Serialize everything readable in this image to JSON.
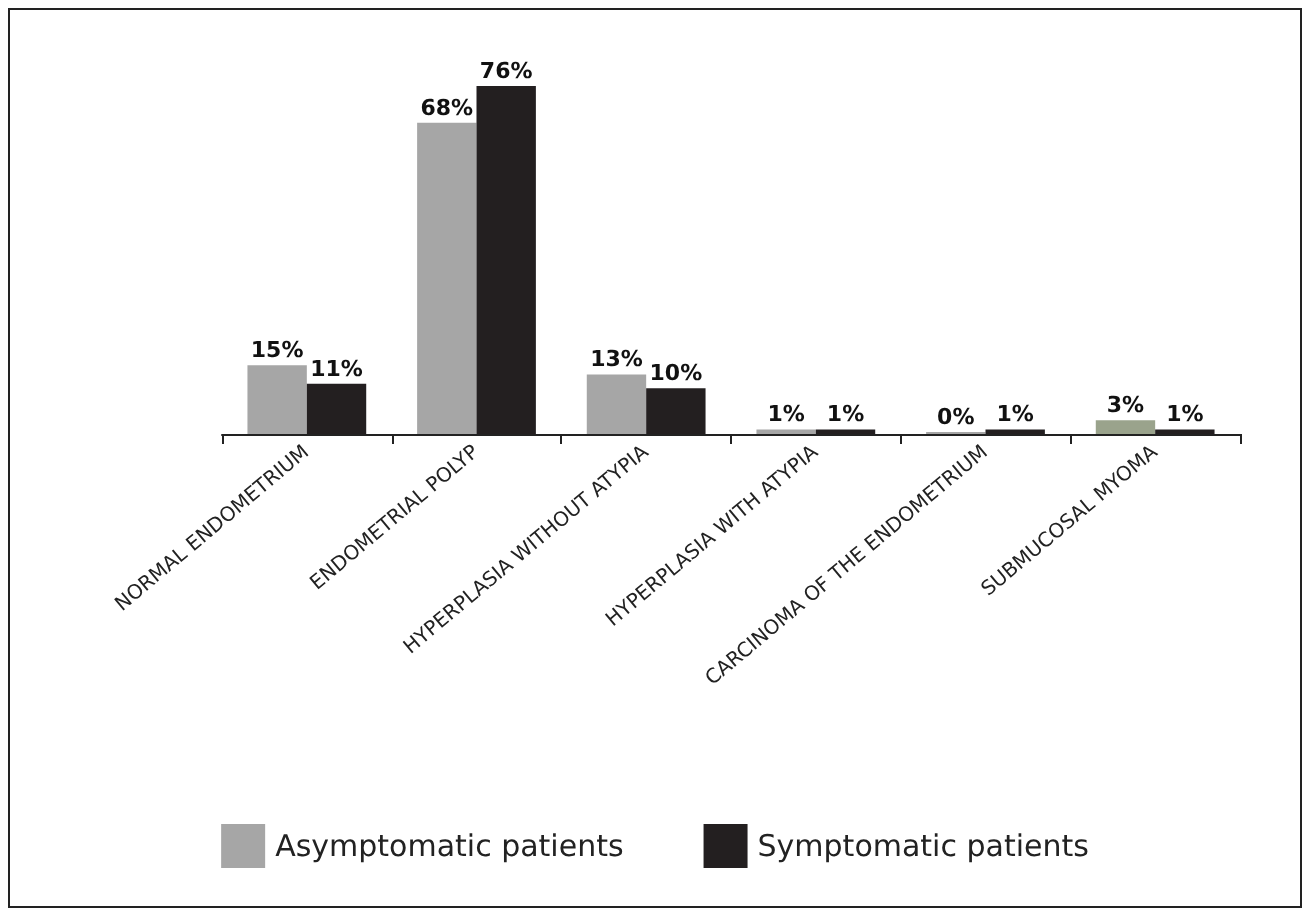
{
  "chart_data": {
    "type": "bar",
    "categories": [
      "NORMAL ENDOMETRIUM",
      "ENDOMETRIAL POLYP",
      "HYPERPLASIA WITHOUT ATYPIA",
      "HYPERPLASIA WITH ATYPIA",
      "CARCINOMA OF THE ENDOMETRIUM",
      "SUBMUCOSAL MYOMA"
    ],
    "series": [
      {
        "name": "Asymptomatic patients",
        "color": "#a6a6a6",
        "colors": [
          "#a6a6a6",
          "#a6a6a6",
          "#a6a6a6",
          "#a6a6a6",
          "#a6a6a6",
          "#9aa38c"
        ],
        "values": [
          15,
          68,
          13,
          1,
          0,
          3
        ],
        "value_labels": [
          "15%",
          "68%",
          "13%",
          "1%",
          "0%",
          "3%"
        ]
      },
      {
        "name": "Symptomatic patients",
        "color": "#231f20",
        "values": [
          11,
          76,
          10,
          1,
          1,
          1
        ],
        "value_labels": [
          "11%",
          "76%",
          "10%",
          "1%",
          "1%",
          "1%"
        ]
      }
    ],
    "legend": "bottom"
  }
}
